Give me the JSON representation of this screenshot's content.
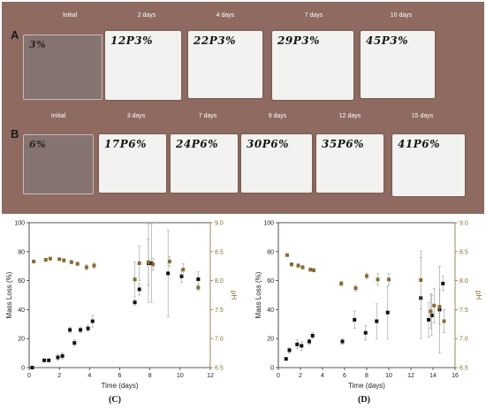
{
  "photos": {
    "row_a": {
      "label": "A",
      "samples": [
        {
          "time_label": "Initial",
          "marking": "3%",
          "is_initial": true
        },
        {
          "time_label": "2 days",
          "marking": "12P3%",
          "is_initial": false
        },
        {
          "time_label": "4 days",
          "marking": "22P3%",
          "is_initial": false
        },
        {
          "time_label": "7 days",
          "marking": "29P3%",
          "is_initial": false
        },
        {
          "time_label": "10 days",
          "marking": "45P3%",
          "is_initial": false
        }
      ]
    },
    "row_b": {
      "label": "B",
      "samples": [
        {
          "time_label": "Initial",
          "marking": "6%",
          "is_initial": true
        },
        {
          "time_label": "3 days",
          "marking": "17P6%",
          "is_initial": false
        },
        {
          "time_label": "7 days",
          "marking": "24P6%",
          "is_initial": false
        },
        {
          "time_label": "9 days",
          "marking": "30P6%",
          "is_initial": false
        },
        {
          "time_label": "12 days",
          "marking": "35P6%",
          "is_initial": false
        },
        {
          "time_label": "15 days",
          "marking": "41P6%",
          "is_initial": false
        }
      ]
    }
  },
  "colors": {
    "mass": "#111111",
    "ph": "#8a6d2b",
    "axis_right": "#8a6d2b",
    "photo_bg": "#8e6a60"
  },
  "chart_data": [
    {
      "type": "scatter",
      "panel": "(C)",
      "xlabel": "Time (days)",
      "ylabel_left": "Mass Loss (%)",
      "ylabel_right": "pH",
      "xlim": [
        0,
        12
      ],
      "xticks": [
        0,
        2,
        4,
        6,
        8,
        10,
        12
      ],
      "ylim_left": [
        0,
        100
      ],
      "yticks_left": [
        0,
        20,
        40,
        60,
        80,
        100
      ],
      "ylim_right": [
        6.5,
        9.0
      ],
      "yticks_right": [
        6.5,
        7.0,
        7.5,
        8.0,
        8.5,
        9.0
      ],
      "series": [
        {
          "name": "Mass Loss",
          "axis": "left",
          "color": "#111111",
          "x": [
            0.2,
            1.0,
            1.3,
            1.9,
            2.2,
            2.7,
            3.0,
            3.4,
            3.9,
            4.2,
            7.0,
            7.3,
            7.9,
            8.1,
            9.2,
            10.1,
            11.2
          ],
          "y": [
            0,
            5,
            5,
            7,
            8,
            26,
            17,
            26,
            27,
            32,
            45,
            54,
            72,
            72,
            65,
            63,
            61
          ],
          "err": [
            0,
            1,
            1,
            2,
            2,
            2,
            2,
            2,
            2,
            4,
            2,
            4,
            27,
            27,
            30,
            4,
            5
          ]
        },
        {
          "name": "pH",
          "axis": "right",
          "color": "#8a6d2b",
          "x": [
            0.3,
            1.1,
            1.4,
            2.0,
            2.3,
            2.8,
            3.2,
            3.8,
            4.3,
            7.0,
            7.3,
            7.9,
            8.2,
            9.3,
            10.2,
            11.2
          ],
          "y": [
            8.33,
            8.36,
            8.38,
            8.37,
            8.35,
            8.32,
            8.29,
            8.23,
            8.26,
            8.02,
            8.3,
            8.32,
            8.28,
            8.33,
            8.19,
            7.88
          ],
          "err": [
            0.02,
            0.02,
            0.02,
            0.02,
            0.03,
            0.03,
            0.03,
            0.05,
            0.05,
            0.3,
            0.3,
            0.4,
            0.1,
            0.08,
            0.1,
            0.05
          ]
        }
      ]
    },
    {
      "type": "scatter",
      "panel": "(D)",
      "xlabel": "Time (days)",
      "ylabel_left": "Mass Loss (%)",
      "ylabel_right": "pH",
      "xlim": [
        0,
        16
      ],
      "xticks": [
        0,
        2,
        4,
        6,
        8,
        10,
        12,
        14,
        16
      ],
      "ylim_left": [
        0,
        100
      ],
      "yticks_left": [
        0,
        20,
        40,
        60,
        80,
        100
      ],
      "ylim_right": [
        6.5,
        9.0
      ],
      "yticks_right": [
        6.5,
        7.0,
        7.5,
        8.0,
        8.5,
        9.0
      ],
      "series": [
        {
          "name": "Mass Loss",
          "axis": "left",
          "color": "#111111",
          "x": [
            0.7,
            1.0,
            1.7,
            2.1,
            2.8,
            3.1,
            5.8,
            6.9,
            7.9,
            8.9,
            9.9,
            12.9,
            13.6,
            13.9,
            14.6,
            14.9
          ],
          "y": [
            6,
            12,
            16,
            15,
            18,
            22,
            18,
            33,
            24,
            32,
            38,
            48,
            33,
            36,
            40,
            58
          ],
          "err": [
            1,
            2,
            3,
            3,
            2,
            2,
            2,
            6,
            5,
            12,
            18,
            28,
            12,
            14,
            30,
            5
          ]
        },
        {
          "name": "pH",
          "axis": "right",
          "color": "#8a6d2b",
          "x": [
            0.8,
            1.2,
            1.8,
            2.2,
            2.9,
            3.2,
            5.7,
            7.0,
            8.0,
            9.0,
            10.0,
            12.9,
            13.8,
            14.1,
            14.6,
            15.0
          ],
          "y": [
            8.44,
            8.28,
            8.26,
            8.23,
            8.19,
            8.18,
            7.95,
            7.87,
            8.08,
            8.02,
            8.02,
            8.01,
            7.47,
            7.57,
            7.55,
            7.3
          ],
          "err": [
            0.02,
            0.03,
            0.03,
            0.03,
            0.03,
            0.03,
            0.04,
            0.05,
            0.05,
            0.1,
            0.1,
            0.5,
            0.3,
            0.3,
            0.3,
            0.2
          ]
        }
      ]
    }
  ]
}
